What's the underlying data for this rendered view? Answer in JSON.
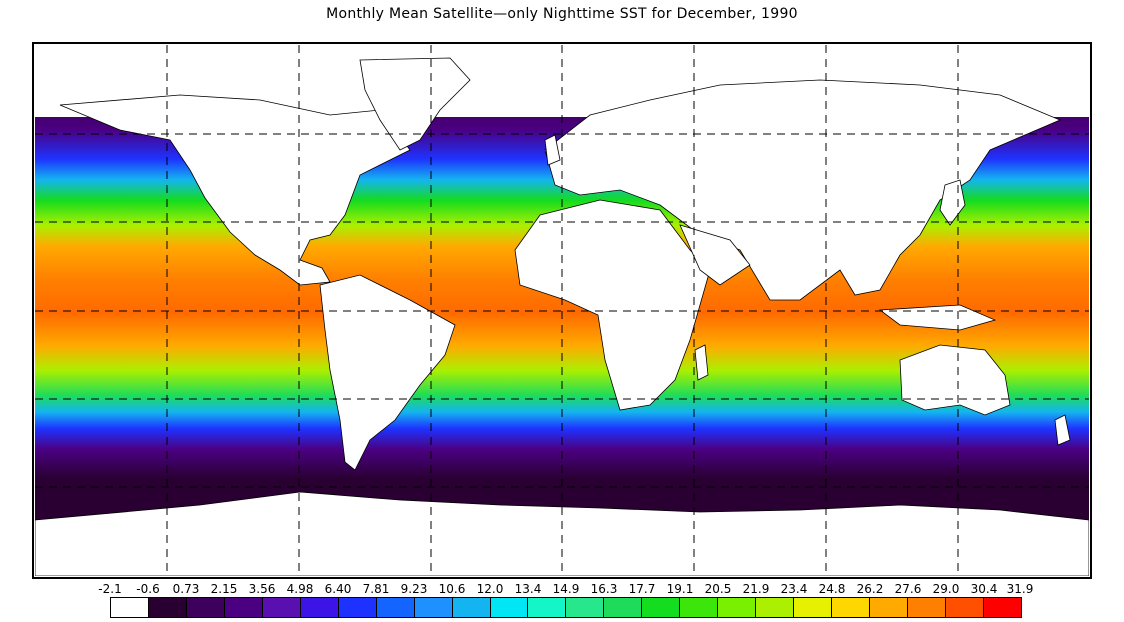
{
  "title": "Monthly Mean Satellite—only Nighttime SST for December, 1990",
  "colorbar": {
    "labels": [
      "-2.1",
      "-0.6",
      "0.73",
      "2.15",
      "3.56",
      "4.98",
      "6.40",
      "7.81",
      "9.23",
      "10.6",
      "12.0",
      "13.4",
      "14.9",
      "16.3",
      "17.7",
      "19.1",
      "20.5",
      "21.9",
      "23.4",
      "24.8",
      "26.2",
      "27.6",
      "29.0",
      "30.4",
      "31.9"
    ],
    "colors": [
      "#ffffff",
      "#2a0033",
      "#3d005c",
      "#4b0082",
      "#5a10b0",
      "#3c14e6",
      "#1e32ff",
      "#1464ff",
      "#1e90ff",
      "#14b4f0",
      "#00e6f5",
      "#14f5c8",
      "#28e68c",
      "#1edc5a",
      "#14dc1e",
      "#3ce60a",
      "#78f000",
      "#aaf000",
      "#e6f000",
      "#ffd700",
      "#ffaa00",
      "#ff8000",
      "#ff5000",
      "#ff0000"
    ]
  }
}
